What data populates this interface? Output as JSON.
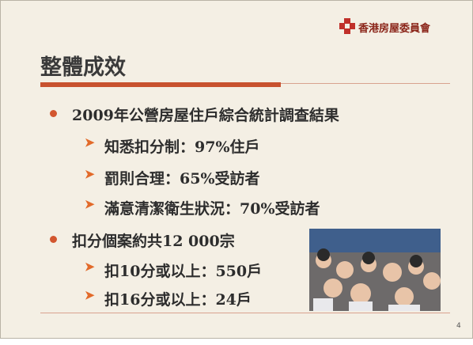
{
  "header": {
    "organization": "香港房屋委員會",
    "title": "整體成效"
  },
  "bullets": [
    {
      "text": "2009年公營房屋住戶綜合統計調查結果",
      "sub": [
        "知悉扣分制：97%住戶",
        "罰則合理：65%受訪者",
        "滿意清潔衛生狀況：70%受訪者"
      ]
    },
    {
      "text": "扣分個案約共12 000宗",
      "sub": [
        "扣10分或以上：550戶",
        "扣16分或以上：24戶"
      ]
    }
  ],
  "page_number": "4"
}
